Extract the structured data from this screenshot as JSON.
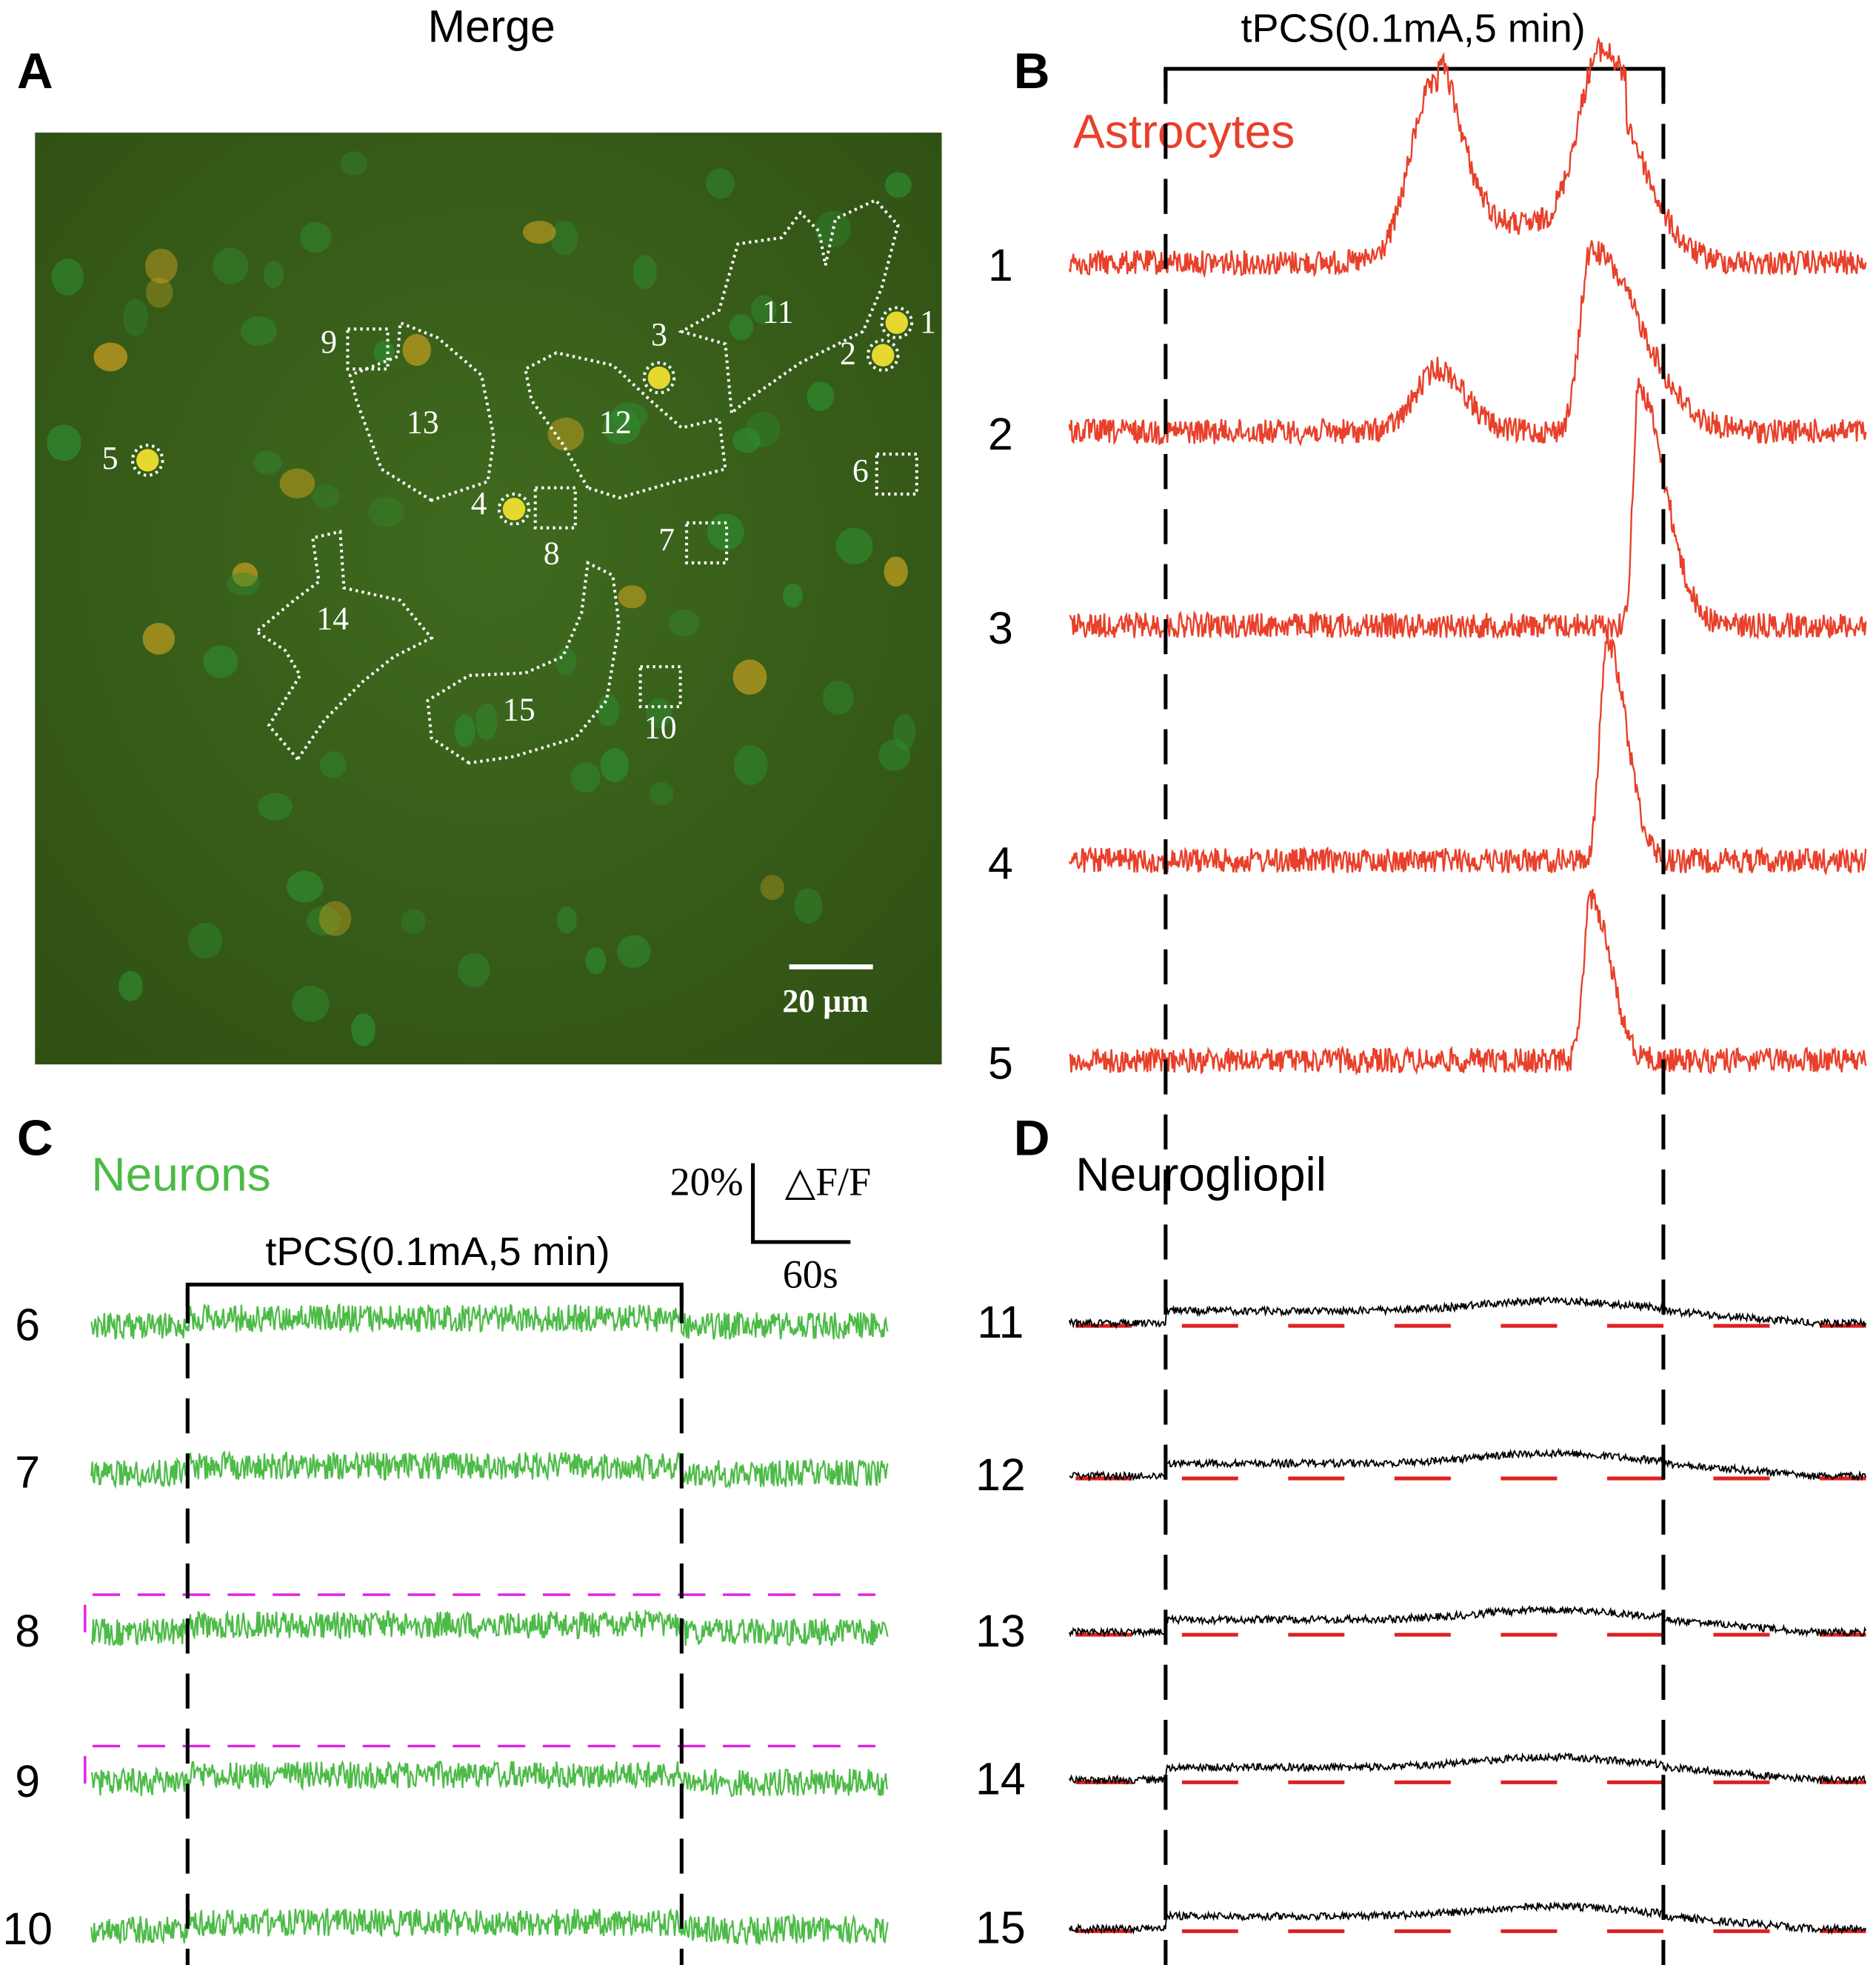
{
  "panels": {
    "A": {
      "label": "A",
      "title": "Merge",
      "scale_bar": "20 μm",
      "rois": [
        "1",
        "2",
        "3",
        "4",
        "5",
        "6",
        "7",
        "8",
        "9",
        "10",
        "11",
        "12",
        "13",
        "14",
        "15"
      ]
    },
    "B": {
      "label": "B",
      "title": "Astrocytes",
      "stimulus": "tPCS(0.1mA,5 min)",
      "traces": [
        "1",
        "2",
        "3",
        "4",
        "5"
      ]
    },
    "C": {
      "label": "C",
      "title": "Neurons",
      "stimulus": "tPCS(0.1mA,5 min)",
      "traces": [
        "6",
        "7",
        "8",
        "9",
        "10"
      ],
      "scale_bar": {
        "y": "20%",
        "y_unit": "△F/F",
        "x": "60s"
      }
    },
    "D": {
      "label": "D",
      "title": "Neurogliopil",
      "traces": [
        "11",
        "12",
        "13",
        "14",
        "15"
      ]
    }
  }
}
